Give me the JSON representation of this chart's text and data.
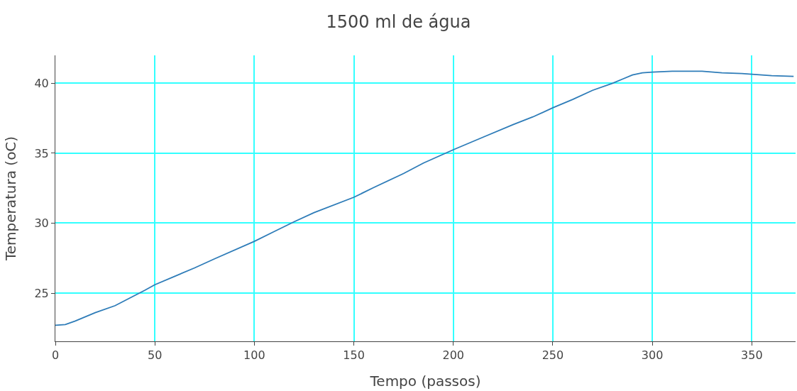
{
  "chart_data": {
    "type": "line",
    "title": "1500 ml de água",
    "xlabel": "Tempo (passos)",
    "ylabel": "Temperatura (oC)",
    "x": [
      0,
      5,
      10,
      20,
      30,
      45,
      50,
      60,
      70,
      80,
      100,
      110,
      120,
      130,
      150,
      160,
      175,
      185,
      200,
      215,
      230,
      240,
      250,
      260,
      270,
      280,
      285,
      290,
      295,
      300,
      310,
      325,
      335,
      345,
      355,
      360,
      371
    ],
    "series": [
      {
        "color": "#2e7cb8",
        "values": [
          22.7,
          22.75,
          23.0,
          23.6,
          24.1,
          25.2,
          25.6,
          26.2,
          26.8,
          27.45,
          28.7,
          29.4,
          30.1,
          30.75,
          31.85,
          32.55,
          33.55,
          34.3,
          35.25,
          36.15,
          37.05,
          37.6,
          38.25,
          38.85,
          39.5,
          40.0,
          40.3,
          40.6,
          40.75,
          40.8,
          40.86,
          40.86,
          40.75,
          40.7,
          40.6,
          40.55,
          40.5
        ]
      }
    ],
    "xlim": [
      0,
      372
    ],
    "ylim": [
      21.55,
      42
    ],
    "xticks": [
      0,
      50,
      100,
      150,
      200,
      250,
      300,
      350
    ],
    "yticks": [
      25,
      30,
      35,
      40
    ],
    "grid": true,
    "marker": "none",
    "line_style": "solid"
  }
}
